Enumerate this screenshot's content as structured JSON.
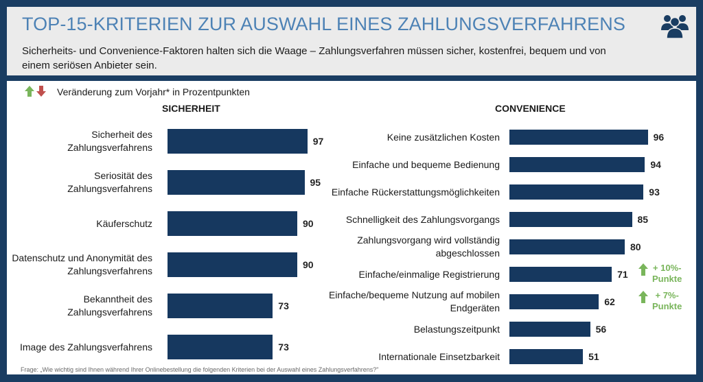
{
  "header": {
    "title": "TOP-15-KRITERIEN ZUR AUSWAHL EINES ZAHLUNGSVERFAHRENS",
    "subtitle": "Sicherheits- und Convenience-Faktoren halten sich die Waage – Zahlungsverfahren müssen sicher, kostenfrei, bequem und von einem seriösen Anbieter sein."
  },
  "colors": {
    "bar": "#16385f",
    "up": "#79b55b",
    "down": "#c0504d",
    "title": "#4d82b5"
  },
  "legend": {
    "label": "Veränderung zum Vorjahr* in Prozentpunkten"
  },
  "footnote": "Frage: „Wie wichtig sind Ihnen während Ihrer Onlinebestellung die folgenden Kriterien bei der Auswahl eines Zahlungsverfahrens?\"",
  "chart_data": [
    {
      "type": "bar",
      "orientation": "horizontal",
      "title": "SICHERHEIT",
      "categories": [
        "Sicherheit des Zahlungsverfahrens",
        "Seriosität des Zahlungsverfahrens",
        "Käuferschutz",
        "Datenschutz und Anonymität des Zahlungsverfahrens",
        "Bekanntheit des Zahlungsverfahrens",
        "Image des Zahlungsverfahrens"
      ],
      "values": [
        97,
        95,
        90,
        90,
        73,
        73
      ],
      "xlim": [
        0,
        100
      ]
    },
    {
      "type": "bar",
      "orientation": "horizontal",
      "title": "CONVENIENCE",
      "categories": [
        "Keine zusätzlichen Kosten",
        "Einfache und bequeme Bedienung",
        "Einfache Rückerstattungsmöglichkeiten",
        "Schnelligkeit des Zahlungsvorgangs",
        "Zahlungsvorgang wird vollständig abgeschlossen",
        "Einfache/einmalige Registrierung",
        "Einfache/bequeme Nutzung auf mobilen Endgeräten",
        "Belastungszeitpunkt",
        "Internationale Einsetzbarkeit"
      ],
      "values": [
        96,
        94,
        93,
        85,
        80,
        71,
        62,
        56,
        51
      ],
      "xlim": [
        0,
        100
      ],
      "annotations": [
        {
          "category": "Einfache/einmalige Registrierung",
          "line1": "+ 10%-",
          "line2": "Punkte",
          "direction": "up"
        },
        {
          "category": "Einfache/bequeme Nutzung auf mobilen Endgeräten",
          "line1": "+ 7%-",
          "line2": "Punkte",
          "direction": "up"
        }
      ]
    }
  ]
}
